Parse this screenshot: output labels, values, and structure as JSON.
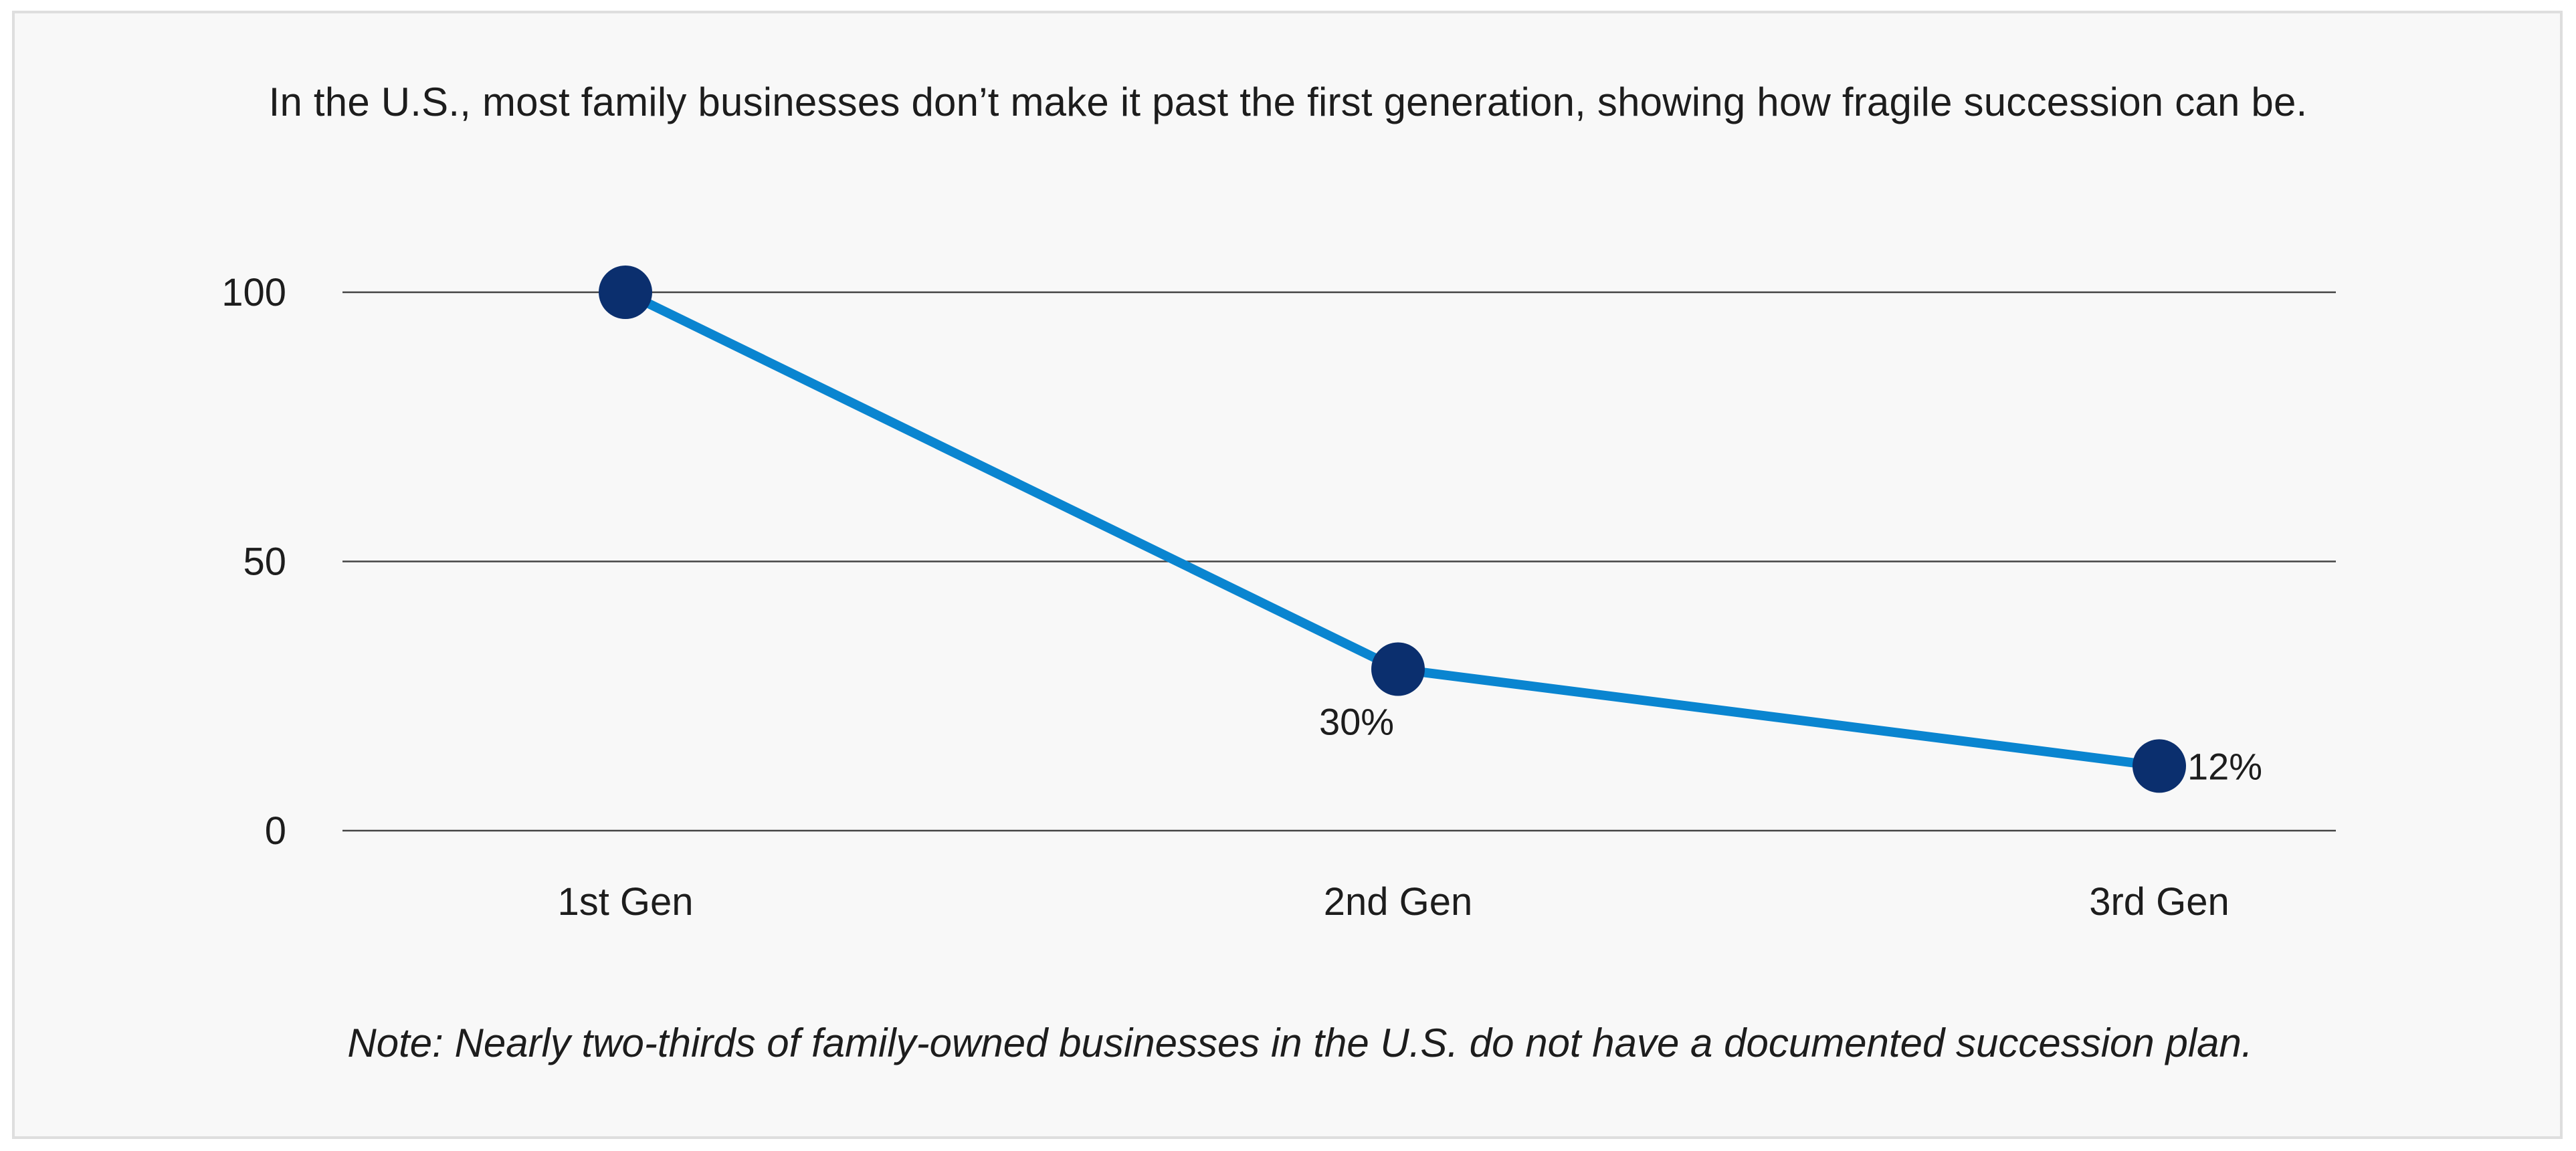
{
  "chart_data": {
    "type": "line",
    "title": "In the U.S., most family businesses don’t make it past the first generation, showing how fragile succession can be.",
    "note": "Note: Nearly two-thirds of family-owned businesses in the U.S. do not have a documented succession plan.",
    "categories": [
      "1st Gen",
      "2nd Gen",
      "3rd Gen"
    ],
    "series": [
      {
        "values": [
          100,
          30,
          12
        ],
        "data_labels": [
          "",
          "30%",
          "12%"
        ]
      }
    ],
    "yticks": [
      "0",
      "50",
      "100"
    ],
    "ytick_values": [
      0,
      50,
      100
    ],
    "ylim": [
      0,
      100
    ],
    "grid": true,
    "xlabel": "",
    "ylabel": "",
    "colors": {
      "line": "#0a85d0",
      "marker": "#0b2f6e",
      "grid": "#444444",
      "background": "#f8f8f8"
    }
  }
}
